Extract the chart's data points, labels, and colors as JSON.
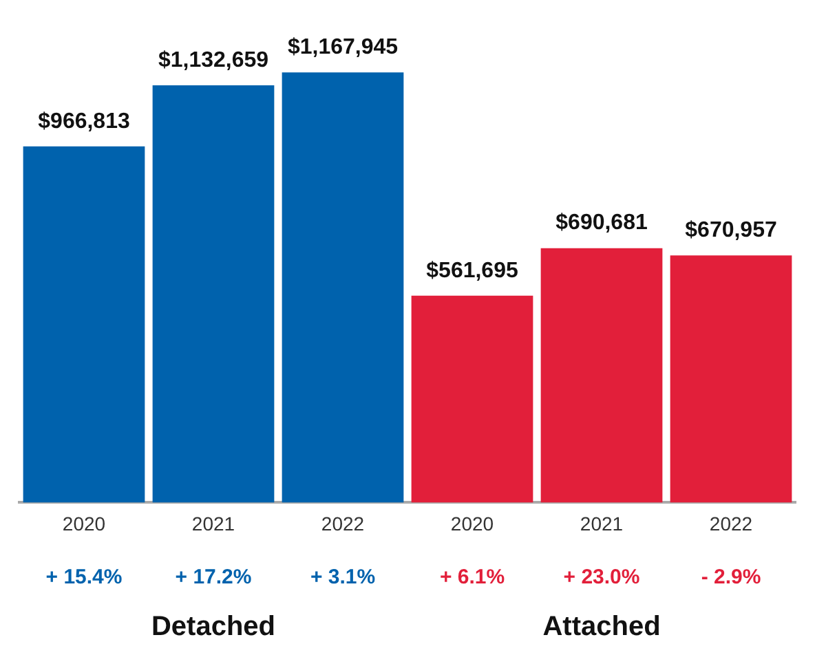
{
  "chart_data": {
    "type": "bar",
    "categories": [
      "2020",
      "2021",
      "2022",
      "2020",
      "2021",
      "2022"
    ],
    "series": [
      {
        "color": "#0062ad",
        "values": [
          966813,
          1132659,
          1167945,
          null,
          null,
          null
        ],
        "value_labels": [
          "$966,813",
          "$1,132,659",
          "$1,167,945",
          null,
          null,
          null
        ]
      },
      {
        "color": "#e21f3a",
        "values": [
          null,
          null,
          null,
          561695,
          690681,
          670957
        ],
        "value_labels": [
          null,
          null,
          null,
          "$561,695",
          "$690,681",
          "$670,957"
        ]
      }
    ],
    "annotations": [
      "+ 15.4%",
      "+ 17.2%",
      "+ 3.1%",
      "+ 6.1%",
      "+ 23.0%",
      "- 2.9%",
      "Detached",
      "Attached"
    ],
    "legend": false,
    "grid": false
  }
}
